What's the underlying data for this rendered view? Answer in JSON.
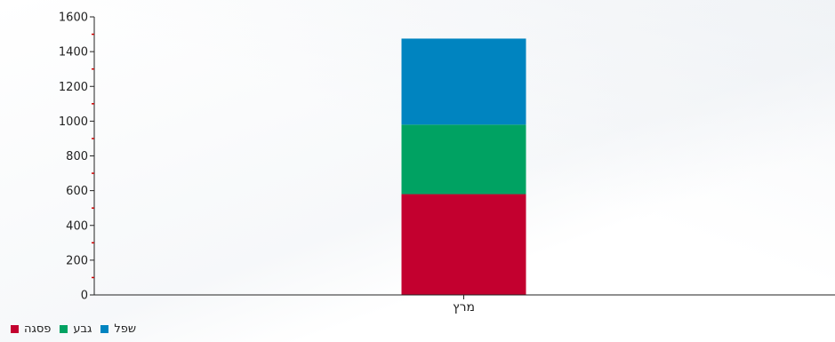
{
  "chart_data": {
    "type": "bar",
    "stacked": true,
    "categories": [
      "מרץ"
    ],
    "series": [
      {
        "name": "פסגה",
        "color": "#c3002f",
        "values": [
          580
        ]
      },
      {
        "name": "גבע",
        "color": "#00a262",
        "values": [
          400
        ]
      },
      {
        "name": "שפל",
        "color": "#0084c0",
        "values": [
          495
        ]
      }
    ],
    "title": "",
    "xlabel": "",
    "ylabel": "",
    "ylim": [
      0,
      1600
    ],
    "yticks": [
      0,
      200,
      400,
      600,
      800,
      1000,
      1200,
      1400,
      1600
    ],
    "grid": false,
    "legend_position": "bottom-left",
    "minor_tick_color": "#cc0000"
  }
}
